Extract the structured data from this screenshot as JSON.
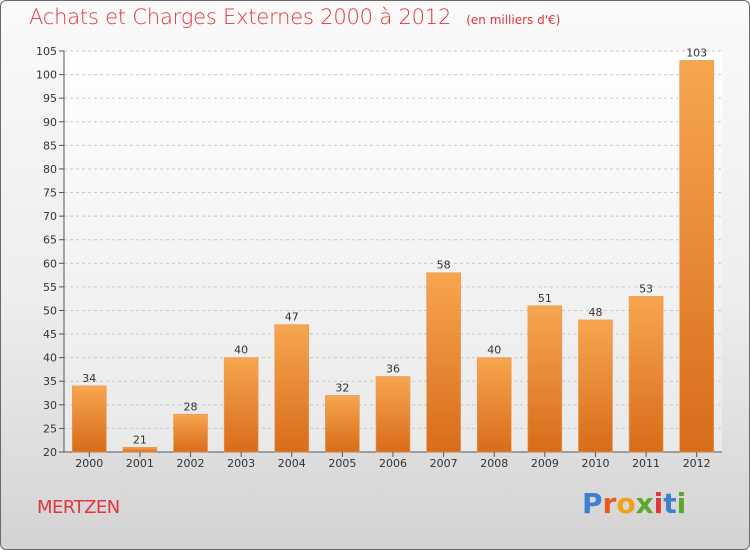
{
  "title": "Achats et Charges Externes 2000 à 2012",
  "subtitle": "(en milliers d'€)",
  "commune": "MERTZEN",
  "brand": {
    "letters": [
      "P",
      "r",
      "o",
      "x",
      "i",
      "t",
      "i"
    ],
    "colors": [
      "#3f7fd0",
      "#e85a1e",
      "#f0a11a",
      "#5aa832",
      "#e0363c",
      "#3f7fd0",
      "#5aa832"
    ]
  },
  "colors": {
    "bar": "#e8802a",
    "bar_light": "#f6a650",
    "bar_dark": "#d86c1a",
    "title": "#e0363c"
  },
  "chart_data": {
    "type": "bar",
    "categories": [
      "2000",
      "2001",
      "2002",
      "2003",
      "2004",
      "2005",
      "2006",
      "2007",
      "2008",
      "2009",
      "2010",
      "2011",
      "2012"
    ],
    "values": [
      34,
      21,
      28,
      40,
      47,
      32,
      36,
      58,
      40,
      51,
      48,
      53,
      103
    ],
    "ylim": [
      20,
      105
    ],
    "yticks": [
      20,
      25,
      30,
      35,
      40,
      45,
      50,
      55,
      60,
      65,
      70,
      75,
      80,
      85,
      90,
      95,
      100,
      105
    ],
    "xlabel": "",
    "ylabel": "",
    "grid": true
  }
}
